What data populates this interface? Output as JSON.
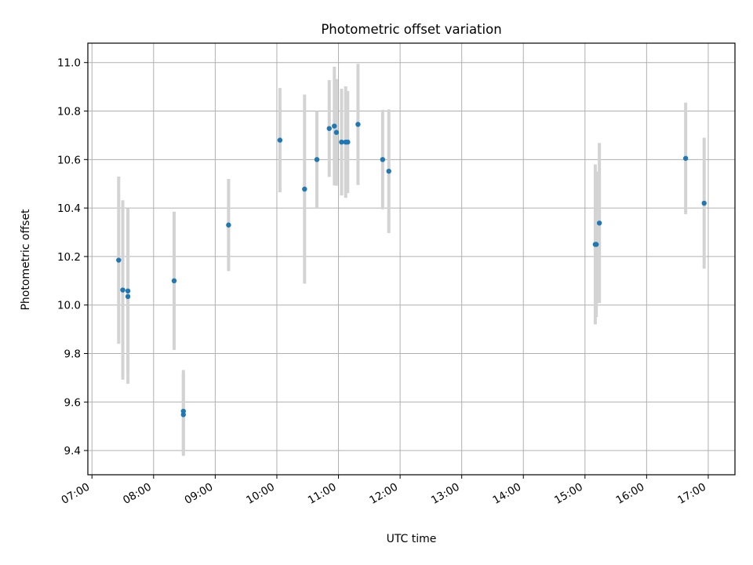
{
  "chart_data": {
    "type": "scatter",
    "title": "Photometric offset variation",
    "xlabel": "UTC time",
    "ylabel": "Photometric offset",
    "xlim": [
      "06:56",
      "17:26"
    ],
    "ylim": [
      9.3,
      11.08
    ],
    "x_ticks": [
      "07:00",
      "08:00",
      "09:00",
      "10:00",
      "11:00",
      "12:00",
      "13:00",
      "14:00",
      "15:00",
      "16:00",
      "17:00"
    ],
    "y_ticks": [
      9.4,
      9.6,
      9.8,
      10.0,
      10.2,
      10.4,
      10.6,
      10.8,
      11.0
    ],
    "grid": true,
    "point_color": "#1f77b4",
    "errorbar_color": "#d3d3d3",
    "points": [
      {
        "x": "07:26",
        "y": 10.185,
        "err": 0.345
      },
      {
        "x": "07:30",
        "y": 10.062,
        "err": 0.37
      },
      {
        "x": "07:35",
        "y": 10.058,
        "err": 0.34
      },
      {
        "x": "07:35",
        "y": 10.035,
        "err": 0.36
      },
      {
        "x": "08:20",
        "y": 10.1,
        "err": 0.285
      },
      {
        "x": "08:29",
        "y": 9.562,
        "err": 0.17
      },
      {
        "x": "08:29",
        "y": 9.548,
        "err": 0.17
      },
      {
        "x": "09:13",
        "y": 10.33,
        "err": 0.19
      },
      {
        "x": "10:03",
        "y": 10.68,
        "err": 0.215
      },
      {
        "x": "10:27",
        "y": 10.478,
        "err": 0.39
      },
      {
        "x": "10:39",
        "y": 10.6,
        "err": 0.2
      },
      {
        "x": "10:51",
        "y": 10.728,
        "err": 0.2
      },
      {
        "x": "10:56",
        "y": 10.738,
        "err": 0.245
      },
      {
        "x": "10:58",
        "y": 10.712,
        "err": 0.22
      },
      {
        "x": "11:03",
        "y": 10.672,
        "err": 0.22
      },
      {
        "x": "11:07",
        "y": 10.672,
        "err": 0.23
      },
      {
        "x": "11:09",
        "y": 10.672,
        "err": 0.21
      },
      {
        "x": "11:19",
        "y": 10.745,
        "err": 0.25
      },
      {
        "x": "11:43",
        "y": 10.6,
        "err": 0.205
      },
      {
        "x": "11:49",
        "y": 10.552,
        "err": 0.255
      },
      {
        "x": "15:10",
        "y": 10.25,
        "err": 0.33
      },
      {
        "x": "15:11",
        "y": 10.25,
        "err": 0.3
      },
      {
        "x": "15:14",
        "y": 10.338,
        "err": 0.33
      },
      {
        "x": "16:38",
        "y": 10.605,
        "err": 0.23
      },
      {
        "x": "16:56",
        "y": 10.42,
        "err": 0.27
      }
    ]
  }
}
